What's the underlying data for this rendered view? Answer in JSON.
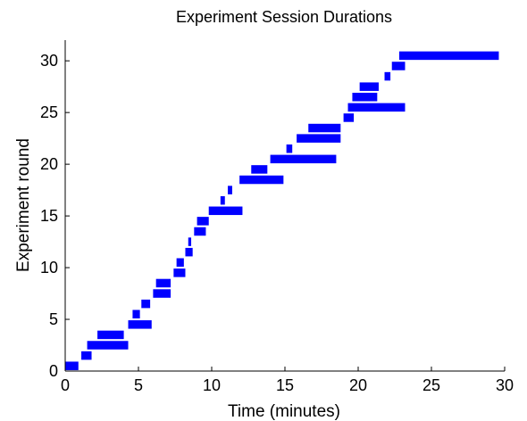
{
  "chart_data": {
    "type": "bar",
    "orientation": "horizontal-ranges",
    "title": "Experiment Session Durations",
    "xlabel": "Time (minutes)",
    "ylabel": "Experiment round",
    "xlim": [
      0,
      30
    ],
    "ylim": [
      0,
      32
    ],
    "xticks": [
      0,
      5,
      10,
      15,
      20,
      25,
      30
    ],
    "yticks": [
      0,
      5,
      10,
      15,
      20,
      25,
      30
    ],
    "grid": false,
    "bar_color": "#0000ff",
    "series": [
      {
        "rounds": [
          {
            "round": 1,
            "start": 0.0,
            "end": 0.9
          },
          {
            "round": 2,
            "start": 1.1,
            "end": 1.8
          },
          {
            "round": 3,
            "start": 1.5,
            "end": 4.3
          },
          {
            "round": 4,
            "start": 2.2,
            "end": 4.0
          },
          {
            "round": 5,
            "start": 4.3,
            "end": 5.9
          },
          {
            "round": 6,
            "start": 4.6,
            "end": 5.1
          },
          {
            "round": 7,
            "start": 5.2,
            "end": 5.8
          },
          {
            "round": 8,
            "start": 6.0,
            "end": 7.2
          },
          {
            "round": 9,
            "start": 6.2,
            "end": 7.2
          },
          {
            "round": 10,
            "start": 7.4,
            "end": 8.2
          },
          {
            "round": 11,
            "start": 7.6,
            "end": 8.1
          },
          {
            "round": 12,
            "start": 8.2,
            "end": 8.7
          },
          {
            "round": 13,
            "start": 8.4,
            "end": 8.6
          },
          {
            "round": 14,
            "start": 8.8,
            "end": 9.6
          },
          {
            "round": 15,
            "start": 9.0,
            "end": 9.8
          },
          {
            "round": 16,
            "start": 9.8,
            "end": 12.1
          },
          {
            "round": 17,
            "start": 10.6,
            "end": 10.9
          },
          {
            "round": 18,
            "start": 11.1,
            "end": 11.4
          },
          {
            "round": 19,
            "start": 11.9,
            "end": 14.9
          },
          {
            "round": 20,
            "start": 12.7,
            "end": 13.8
          },
          {
            "round": 21,
            "start": 14.0,
            "end": 18.5
          },
          {
            "round": 22,
            "start": 15.1,
            "end": 15.5
          },
          {
            "round": 23,
            "start": 15.8,
            "end": 18.8
          },
          {
            "round": 24,
            "start": 16.6,
            "end": 18.8
          },
          {
            "round": 25,
            "start": 19.0,
            "end": 19.7
          },
          {
            "round": 26,
            "start": 19.3,
            "end": 23.2
          },
          {
            "round": 27,
            "start": 19.6,
            "end": 21.3
          },
          {
            "round": 28,
            "start": 20.1,
            "end": 21.4
          },
          {
            "round": 29,
            "start": 21.8,
            "end": 22.2
          },
          {
            "round": 30,
            "start": 22.3,
            "end": 23.2
          },
          {
            "round": 31,
            "start": 22.8,
            "end": 29.6
          }
        ]
      }
    ]
  }
}
